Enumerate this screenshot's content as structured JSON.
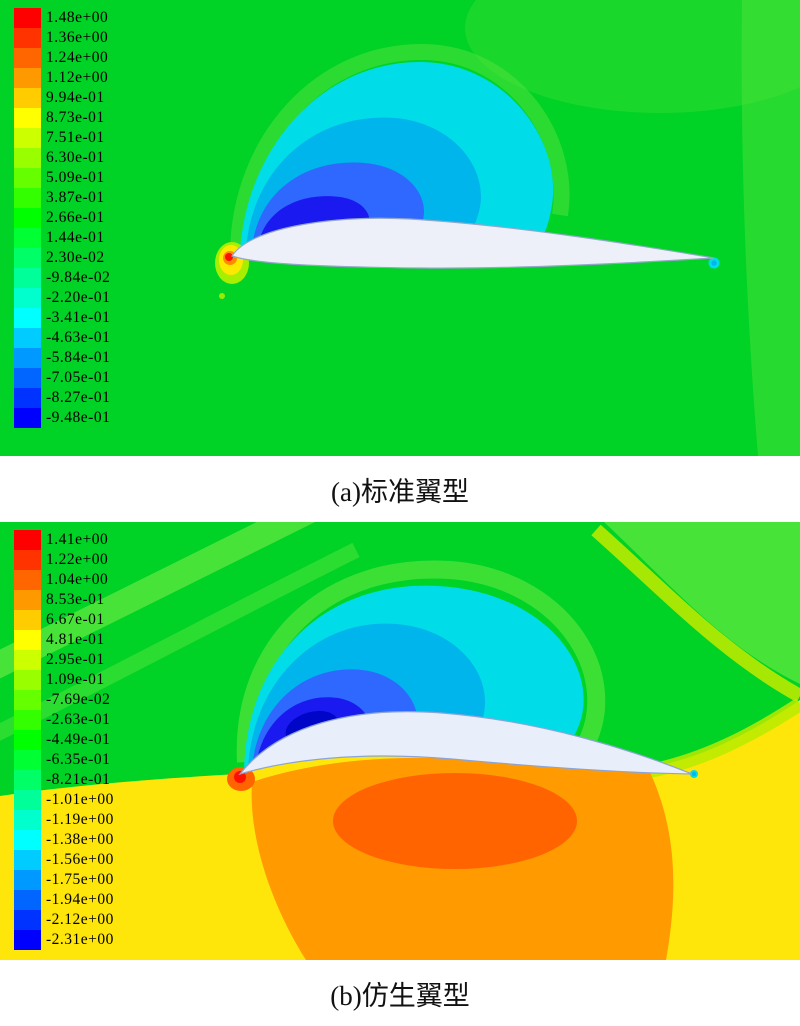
{
  "figure": {
    "page_background": "#ffffff",
    "panels": [
      {
        "id": "a",
        "caption": "(a)标准翼型",
        "legend": {
          "entries": [
            {
              "value": "1.48e+00",
              "color": "#ff0000"
            },
            {
              "value": "1.36e+00",
              "color": "#ff3300"
            },
            {
              "value": "1.24e+00",
              "color": "#ff6600"
            },
            {
              "value": "1.12e+00",
              "color": "#ff9900"
            },
            {
              "value": "9.94e-01",
              "color": "#ffcc00"
            },
            {
              "value": "8.73e-01",
              "color": "#ffff00"
            },
            {
              "value": "7.51e-01",
              "color": "#ccff00"
            },
            {
              "value": "6.30e-01",
              "color": "#99ff00"
            },
            {
              "value": "5.09e-01",
              "color": "#66ff00"
            },
            {
              "value": "3.87e-01",
              "color": "#33ff00"
            },
            {
              "value": "2.66e-01",
              "color": "#00ff00"
            },
            {
              "value": "1.44e-01",
              "color": "#00ff33"
            },
            {
              "value": "2.30e-02",
              "color": "#00ff66"
            },
            {
              "value": "-9.84e-02",
              "color": "#00ff99"
            },
            {
              "value": "-2.20e-01",
              "color": "#00ffcc"
            },
            {
              "value": "-3.41e-01",
              "color": "#00ffff"
            },
            {
              "value": "-4.63e-01",
              "color": "#00ccff"
            },
            {
              "value": "-5.84e-01",
              "color": "#0099ff"
            },
            {
              "value": "-7.05e-01",
              "color": "#0066ff"
            },
            {
              "value": "-8.27e-01",
              "color": "#0033ff"
            },
            {
              "value": "-9.48e-01",
              "color": "#0000ff"
            }
          ]
        },
        "field_colors": {
          "green": "#00d226",
          "light_green": "#55e43c",
          "cyan": "#00dce8",
          "teal": "#00b4ec",
          "blue": "#2e68ff",
          "deep_blue": "#1a1af0",
          "stag_halo": "#a8ee00",
          "stag_yellow": "#ffe800",
          "stag_orange": "#ff8c00",
          "stag_red": "#ff0f00",
          "airfoil_fill": "#edf0f9",
          "airfoil_stroke": "#93a7c9"
        }
      },
      {
        "id": "b",
        "caption": "(b)仿生翼型",
        "legend": {
          "entries": [
            {
              "value": "1.41e+00",
              "color": "#ff0000"
            },
            {
              "value": "1.22e+00",
              "color": "#ff3300"
            },
            {
              "value": "1.04e+00",
              "color": "#ff6600"
            },
            {
              "value": "8.53e-01",
              "color": "#ff9900"
            },
            {
              "value": "6.67e-01",
              "color": "#ffcc00"
            },
            {
              "value": "4.81e-01",
              "color": "#ffff00"
            },
            {
              "value": "2.95e-01",
              "color": "#ccff00"
            },
            {
              "value": "1.09e-01",
              "color": "#99ff00"
            },
            {
              "value": "-7.69e-02",
              "color": "#66ff00"
            },
            {
              "value": "-2.63e-01",
              "color": "#33ff00"
            },
            {
              "value": "-4.49e-01",
              "color": "#00ff00"
            },
            {
              "value": "-6.35e-01",
              "color": "#00ff33"
            },
            {
              "value": "-8.21e-01",
              "color": "#00ff66"
            },
            {
              "value": "-1.01e+00",
              "color": "#00ff99"
            },
            {
              "value": "-1.19e+00",
              "color": "#00ffcc"
            },
            {
              "value": "-1.38e+00",
              "color": "#00ffff"
            },
            {
              "value": "-1.56e+00",
              "color": "#00ccff"
            },
            {
              "value": "-1.75e+00",
              "color": "#0099ff"
            },
            {
              "value": "-1.94e+00",
              "color": "#0066ff"
            },
            {
              "value": "-2.12e+00",
              "color": "#0033ff"
            },
            {
              "value": "-2.31e+00",
              "color": "#0000ff"
            }
          ]
        },
        "field_colors": {
          "green": "#00d226",
          "light_green": "#55e63c",
          "ygreen": "#b8ea00",
          "yellow": "#ffe60a",
          "orange": "#ff9a00",
          "deep_orange": "#ff6400",
          "cyan": "#00dce8",
          "teal": "#00b4ec",
          "blue": "#2e68ff",
          "deep_blue": "#1a1af0",
          "navy": "#0006c8",
          "stag_red": "#ff0f00",
          "airfoil_fill": "#e9eefb",
          "airfoil_stroke": "#8ba4d6"
        }
      }
    ]
  },
  "chart_data": [
    {
      "type": "heatmap",
      "variant": "cfd-filled-pressure-contour",
      "title": "(a)标准翼型",
      "levels": [
        1.48,
        1.36,
        1.24,
        1.12,
        0.994,
        0.873,
        0.751,
        0.63,
        0.509,
        0.387,
        0.266,
        0.144,
        0.023,
        -0.0984,
        -0.22,
        -0.341,
        -0.463,
        -0.584,
        -0.705,
        -0.827,
        -0.948
      ],
      "level_labels": [
        "1.48e+00",
        "1.36e+00",
        "1.24e+00",
        "1.12e+00",
        "9.94e-01",
        "8.73e-01",
        "7.51e-01",
        "6.30e-01",
        "5.09e-01",
        "3.87e-01",
        "2.66e-01",
        "1.44e-01",
        "2.30e-02",
        "-9.84e-02",
        "-2.20e-01",
        "-3.41e-01",
        "-4.63e-01",
        "-5.84e-01",
        "-7.05e-01",
        "-8.27e-01",
        "-9.48e-01"
      ],
      "colors": [
        "#ff0000",
        "#ff3300",
        "#ff6600",
        "#ff9900",
        "#ffcc00",
        "#ffff00",
        "#ccff00",
        "#99ff00",
        "#66ff00",
        "#33ff00",
        "#00ff00",
        "#00ff33",
        "#00ff66",
        "#00ff99",
        "#00ffcc",
        "#00ffff",
        "#00ccff",
        "#0099ff",
        "#0066ff",
        "#0033ff",
        "#0000ff"
      ],
      "value_range": [
        -0.948,
        1.48
      ],
      "legend_position": "top-left",
      "annotations": [
        "low-pressure cyan/blue dome above airfoil upper surface",
        "red high-pressure stagnation point at leading edge",
        "small cyan spot behind trailing edge",
        "mid-level green free stream"
      ]
    },
    {
      "type": "heatmap",
      "variant": "cfd-filled-pressure-contour",
      "title": "(b)仿生翼型",
      "levels": [
        1.41,
        1.22,
        1.04,
        0.853,
        0.667,
        0.481,
        0.295,
        0.109,
        -0.0769,
        -0.263,
        -0.449,
        -0.635,
        -0.821,
        -1.01,
        -1.19,
        -1.38,
        -1.56,
        -1.75,
        -1.94,
        -2.12,
        -2.31
      ],
      "level_labels": [
        "1.41e+00",
        "1.22e+00",
        "1.04e+00",
        "8.53e-01",
        "6.67e-01",
        "4.81e-01",
        "2.95e-01",
        "1.09e-01",
        "-7.69e-02",
        "-2.63e-01",
        "-4.49e-01",
        "-6.35e-01",
        "-8.21e-01",
        "-1.01e+00",
        "-1.19e+00",
        "-1.38e+00",
        "-1.56e+00",
        "-1.75e+00",
        "-1.94e+00",
        "-2.12e+00",
        "-2.31e+00"
      ],
      "colors": [
        "#ff0000",
        "#ff3300",
        "#ff6600",
        "#ff9900",
        "#ffcc00",
        "#ffff00",
        "#ccff00",
        "#99ff00",
        "#66ff00",
        "#33ff00",
        "#00ff00",
        "#00ff33",
        "#00ff66",
        "#00ff99",
        "#00ffcc",
        "#00ffff",
        "#00ccff",
        "#0099ff",
        "#0066ff",
        "#0033ff",
        "#0000ff"
      ],
      "value_range": [
        -2.31,
        1.41
      ],
      "legend_position": "top-left",
      "annotations": [
        "low-pressure cyan/blue/dark-blue pocket above cambered upper surface near leading edge",
        "large yellow/orange high-pressure region under the airfoil",
        "red stagnation point at leading edge",
        "green free stream above"
      ]
    }
  ]
}
